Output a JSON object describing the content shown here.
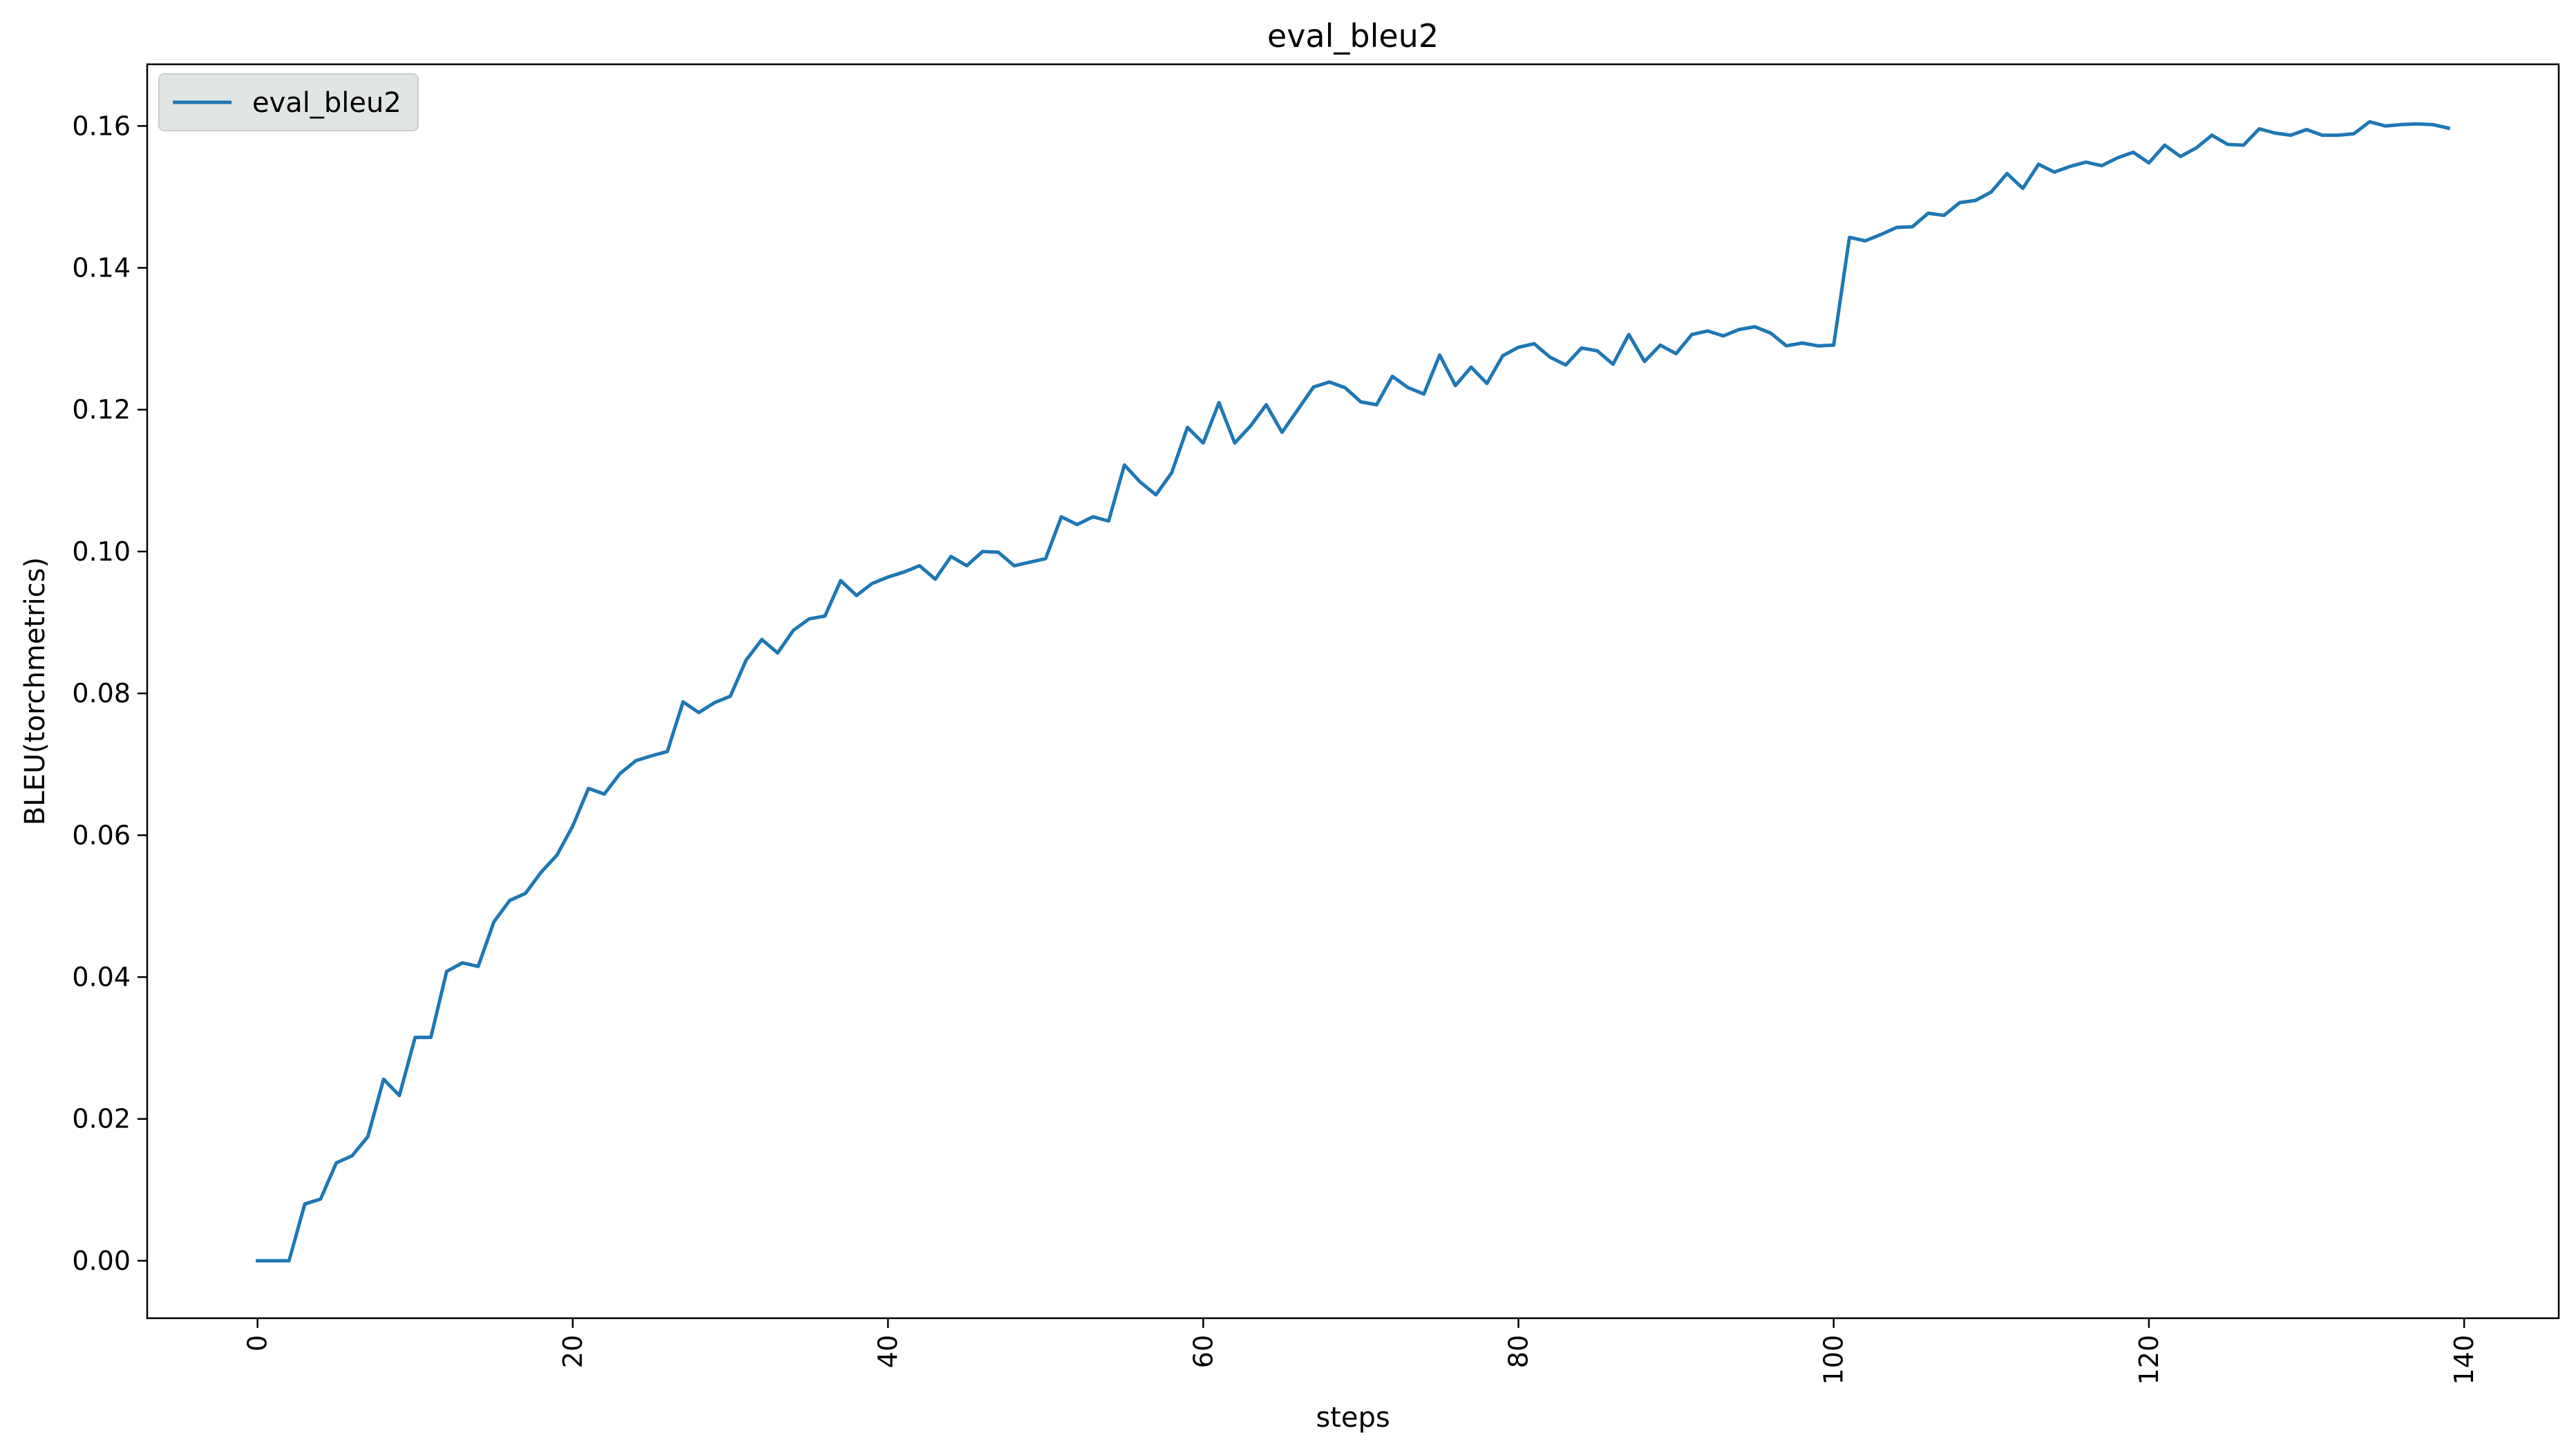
{
  "chart_data": {
    "type": "line",
    "title": "eval_bleu2",
    "xlabel": "steps",
    "ylabel": "BLEU(torchmetrics)",
    "xlim": [
      -7,
      146
    ],
    "ylim": [
      -0.0081,
      0.1687
    ],
    "xticks": [
      0,
      20,
      40,
      60,
      80,
      100,
      120,
      140
    ],
    "xtick_labels": [
      "0",
      "20",
      "40",
      "60",
      "80",
      "100",
      "120",
      "140"
    ],
    "xtick_rotation": 90,
    "yticks": [
      0.0,
      0.02,
      0.04,
      0.06,
      0.08,
      0.1,
      0.12,
      0.14,
      0.16
    ],
    "ytick_labels": [
      "0.00",
      "0.02",
      "0.04",
      "0.06",
      "0.08",
      "0.10",
      "0.12",
      "0.14",
      "0.16"
    ],
    "grid": false,
    "legend_position": "top-left",
    "series": [
      {
        "name": "eval_bleu2",
        "color": "#1f77b4",
        "x": [
          0,
          1,
          2,
          3,
          4,
          5,
          6,
          7,
          8,
          9,
          10,
          11,
          12,
          13,
          14,
          15,
          16,
          17,
          18,
          19,
          20,
          21,
          22,
          23,
          24,
          25,
          26,
          27,
          28,
          29,
          30,
          31,
          32,
          33,
          34,
          35,
          36,
          37,
          38,
          39,
          40,
          41,
          42,
          43,
          44,
          45,
          46,
          47,
          48,
          49,
          50,
          51,
          52,
          53,
          54,
          55,
          56,
          57,
          58,
          59,
          60,
          61,
          62,
          63,
          64,
          65,
          66,
          67,
          68,
          69,
          70,
          71,
          72,
          73,
          74,
          75,
          76,
          77,
          78,
          79,
          80,
          81,
          82,
          83,
          84,
          85,
          86,
          87,
          88,
          89,
          90,
          91,
          92,
          93,
          94,
          95,
          96,
          97,
          98,
          99,
          100,
          101,
          102,
          103,
          104,
          105,
          106,
          107,
          108,
          109,
          110,
          111,
          112,
          113,
          114,
          115,
          116,
          117,
          118,
          119,
          120,
          121,
          122,
          123,
          124,
          125,
          126,
          127,
          128,
          129,
          130,
          131,
          132,
          133,
          134,
          135,
          136,
          137,
          138,
          139
        ],
        "values": [
          0.0,
          0.0,
          0.0,
          0.008,
          0.0087,
          0.0138,
          0.0148,
          0.0175,
          0.0256,
          0.0233,
          0.0315,
          0.0315,
          0.0408,
          0.042,
          0.0415,
          0.0478,
          0.0508,
          0.0518,
          0.0548,
          0.0572,
          0.0613,
          0.0666,
          0.0658,
          0.0687,
          0.0705,
          0.0712,
          0.0718,
          0.0788,
          0.0773,
          0.0787,
          0.0796,
          0.0847,
          0.0876,
          0.0857,
          0.0889,
          0.0905,
          0.0909,
          0.0959,
          0.0938,
          0.0955,
          0.0964,
          0.0971,
          0.098,
          0.0961,
          0.0993,
          0.098,
          0.1,
          0.0999,
          0.098,
          0.0985,
          0.099,
          0.1049,
          0.1038,
          0.1049,
          0.1043,
          0.1122,
          0.1098,
          0.108,
          0.1111,
          0.1175,
          0.1153,
          0.121,
          0.1153,
          0.1177,
          0.1207,
          0.1168,
          0.12,
          0.1232,
          0.1239,
          0.1231,
          0.1211,
          0.1207,
          0.1247,
          0.1231,
          0.1222,
          0.1277,
          0.1234,
          0.126,
          0.1237,
          0.1276,
          0.1288,
          0.1293,
          0.1274,
          0.1263,
          0.1287,
          0.1283,
          0.1264,
          0.1306,
          0.1268,
          0.1291,
          0.1279,
          0.1306,
          0.1311,
          0.1304,
          0.1313,
          0.1317,
          0.1308,
          0.129,
          0.1294,
          0.129,
          0.1291,
          0.1443,
          0.1438,
          0.1447,
          0.1457,
          0.1458,
          0.1477,
          0.1474,
          0.1492,
          0.1495,
          0.1507,
          0.1533,
          0.1512,
          0.1546,
          0.1535,
          0.1543,
          0.1549,
          0.1544,
          0.1555,
          0.1563,
          0.1548,
          0.1573,
          0.1557,
          0.1569,
          0.1587,
          0.1574,
          0.1573,
          0.1596,
          0.159,
          0.1587,
          0.1595,
          0.1587,
          0.1587,
          0.1589,
          0.1606,
          0.16,
          0.1602,
          0.1603,
          0.1602,
          0.1597
        ]
      }
    ]
  }
}
